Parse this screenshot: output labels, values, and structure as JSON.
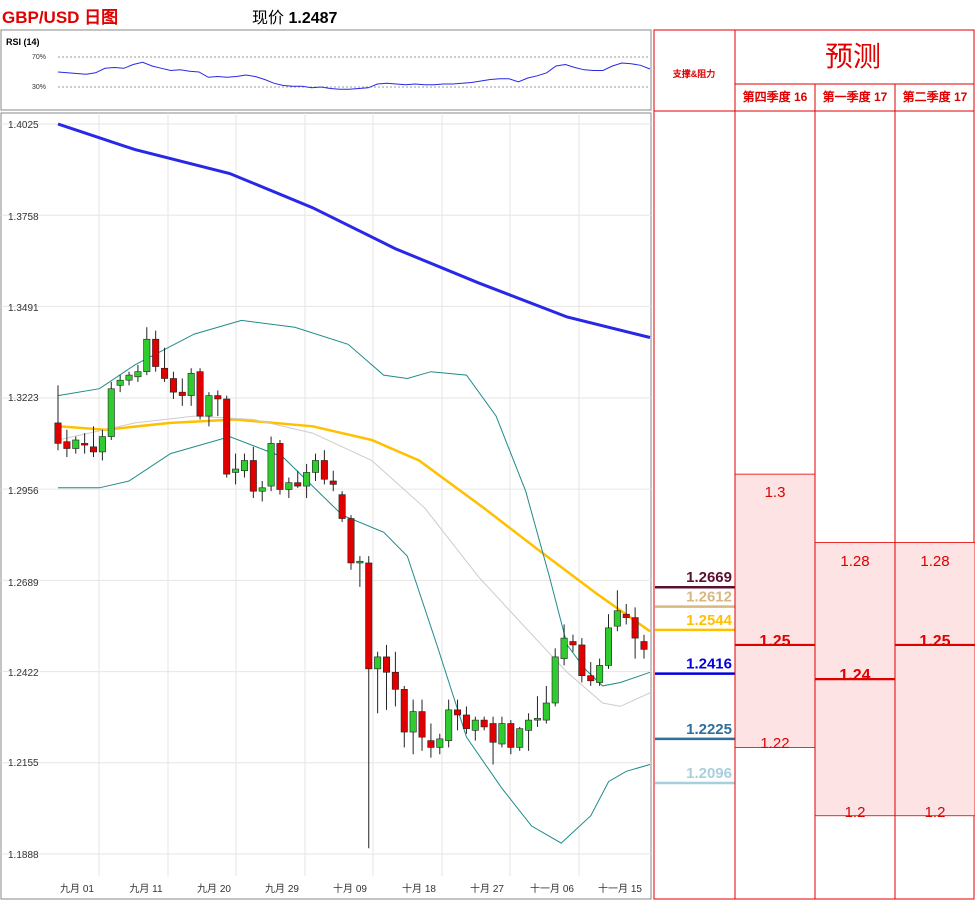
{
  "header": {
    "symbol_title": "GBP/USD 日图",
    "price_label": "现价",
    "price_value": "1.2487"
  },
  "chart_data": {
    "type": "candlestick",
    "y_ticks": [
      "1.4025",
      "1.3758",
      "1.3491",
      "1.3223",
      "1.2956",
      "1.2689",
      "1.2422",
      "1.2155",
      "1.1888"
    ],
    "x_labels": [
      "九月 01",
      "九月 11",
      "九月 20",
      "九月 29",
      "十月 09",
      "十月 18",
      "十月 27",
      "十一月 06",
      "十一月 15"
    ],
    "ylim": [
      1.1888,
      1.4025
    ],
    "candles": [
      [
        1.315,
        1.326,
        1.307,
        1.309
      ],
      [
        1.3095,
        1.313,
        1.305,
        1.3075
      ],
      [
        1.3075,
        1.311,
        1.306,
        1.31
      ],
      [
        1.309,
        1.312,
        1.306,
        1.3085
      ],
      [
        1.308,
        1.314,
        1.305,
        1.3065
      ],
      [
        1.3065,
        1.313,
        1.304,
        1.311
      ],
      [
        1.311,
        1.327,
        1.31,
        1.325
      ],
      [
        1.326,
        1.329,
        1.324,
        1.3275
      ],
      [
        1.3275,
        1.33,
        1.326,
        1.329
      ],
      [
        1.3285,
        1.332,
        1.327,
        1.33
      ],
      [
        1.33,
        1.343,
        1.329,
        1.3395
      ],
      [
        1.3395,
        1.342,
        1.33,
        1.3315
      ],
      [
        1.331,
        1.337,
        1.327,
        1.328
      ],
      [
        1.328,
        1.33,
        1.322,
        1.324
      ],
      [
        1.324,
        1.328,
        1.32,
        1.323
      ],
      [
        1.323,
        1.331,
        1.32,
        1.3295
      ],
      [
        1.33,
        1.331,
        1.316,
        1.317
      ],
      [
        1.317,
        1.324,
        1.314,
        1.323
      ],
      [
        1.323,
        1.3245,
        1.317,
        1.322
      ],
      [
        1.322,
        1.323,
        1.299,
        1.3
      ],
      [
        1.3005,
        1.306,
        1.297,
        1.3015
      ],
      [
        1.301,
        1.306,
        1.299,
        1.304
      ],
      [
        1.304,
        1.308,
        1.293,
        1.295
      ],
      [
        1.295,
        1.298,
        1.292,
        1.296
      ],
      [
        1.2965,
        1.311,
        1.295,
        1.309
      ],
      [
        1.309,
        1.31,
        1.294,
        1.2955
      ],
      [
        1.2955,
        1.299,
        1.293,
        1.2975
      ],
      [
        1.2975,
        1.301,
        1.296,
        1.2965
      ],
      [
        1.2965,
        1.303,
        1.293,
        1.3005
      ],
      [
        1.3005,
        1.306,
        1.298,
        1.304
      ],
      [
        1.304,
        1.307,
        1.297,
        1.2985
      ],
      [
        1.298,
        1.301,
        1.295,
        1.297
      ],
      [
        1.294,
        1.295,
        1.286,
        1.287
      ],
      [
        1.287,
        1.288,
        1.272,
        1.274
      ],
      [
        1.274,
        1.276,
        1.267,
        1.2745
      ],
      [
        1.274,
        1.276,
        1.1905,
        1.243
      ],
      [
        1.243,
        1.248,
        1.23,
        1.2465
      ],
      [
        1.2465,
        1.25,
        1.231,
        1.242
      ],
      [
        1.242,
        1.248,
        1.232,
        1.237
      ],
      [
        1.237,
        1.238,
        1.22,
        1.2245
      ],
      [
        1.2245,
        1.234,
        1.218,
        1.2305
      ],
      [
        1.2305,
        1.234,
        1.219,
        1.223
      ],
      [
        1.222,
        1.227,
        1.217,
        1.22
      ],
      [
        1.22,
        1.224,
        1.218,
        1.2225
      ],
      [
        1.222,
        1.234,
        1.22,
        1.231
      ],
      [
        1.231,
        1.234,
        1.225,
        1.2295
      ],
      [
        1.2295,
        1.232,
        1.224,
        1.2255
      ],
      [
        1.225,
        1.229,
        1.222,
        1.228
      ],
      [
        1.228,
        1.229,
        1.225,
        1.226
      ],
      [
        1.227,
        1.229,
        1.215,
        1.2215
      ],
      [
        1.221,
        1.229,
        1.22,
        1.227
      ],
      [
        1.227,
        1.228,
        1.218,
        1.22
      ],
      [
        1.22,
        1.226,
        1.219,
        1.2255
      ],
      [
        1.225,
        1.23,
        1.219,
        1.228
      ],
      [
        1.228,
        1.235,
        1.226,
        1.2285
      ],
      [
        1.228,
        1.238,
        1.227,
        1.233
      ],
      [
        1.233,
        1.249,
        1.232,
        1.2465
      ],
      [
        1.246,
        1.256,
        1.244,
        1.252
      ],
      [
        1.251,
        1.253,
        1.248,
        1.25
      ],
      [
        1.25,
        1.252,
        1.239,
        1.241
      ],
      [
        1.241,
        1.245,
        1.238,
        1.2395
      ],
      [
        1.239,
        1.246,
        1.238,
        1.244
      ],
      [
        1.244,
        1.259,
        1.243,
        1.255
      ],
      [
        1.2555,
        1.266,
        1.254,
        1.26
      ],
      [
        1.259,
        1.262,
        1.256,
        1.258
      ],
      [
        1.258,
        1.261,
        1.246,
        1.252
      ],
      [
        1.251,
        1.253,
        1.246,
        1.2487
      ]
    ],
    "series": [
      {
        "name": "",
        "color": "#2828e6",
        "values": [
          [
            0,
            1.4025
          ],
          [
            0.13,
            1.395
          ],
          [
            0.29,
            1.388
          ],
          [
            0.43,
            1.378
          ],
          [
            0.57,
            1.366
          ],
          [
            0.71,
            1.356
          ],
          [
            0.86,
            1.346
          ],
          [
            1,
            1.34
          ]
        ]
      },
      {
        "name": "",
        "color": "#ffc000",
        "values": [
          [
            0,
            1.314
          ],
          [
            0.08,
            1.313
          ],
          [
            0.19,
            1.315
          ],
          [
            0.3,
            1.316
          ],
          [
            0.43,
            1.314
          ],
          [
            0.53,
            1.31
          ],
          [
            0.61,
            1.304
          ],
          [
            0.72,
            1.29
          ],
          [
            0.81,
            1.278
          ],
          [
            0.91,
            1.265
          ],
          [
            1,
            1.254
          ]
        ]
      },
      {
        "name": "",
        "color": "#208a8a",
        "values": [
          [
            0,
            1.323
          ],
          [
            0.07,
            1.325
          ],
          [
            0.13,
            1.332
          ],
          [
            0.23,
            1.341
          ],
          [
            0.31,
            1.345
          ],
          [
            0.4,
            1.343
          ],
          [
            0.49,
            1.338
          ],
          [
            0.55,
            1.329
          ],
          [
            0.59,
            1.328
          ],
          [
            0.63,
            1.33
          ],
          [
            0.69,
            1.329
          ],
          [
            0.74,
            1.317
          ],
          [
            0.79,
            1.295
          ],
          [
            0.83,
            1.27
          ],
          [
            0.86,
            1.25
          ],
          [
            0.89,
            1.243
          ],
          [
            0.92,
            1.238
          ],
          [
            0.95,
            1.239
          ],
          [
            1,
            1.242
          ]
        ]
      },
      {
        "name": "",
        "color": "#cccccc",
        "values": [
          [
            0,
            1.31
          ],
          [
            0.13,
            1.315
          ],
          [
            0.23,
            1.317
          ],
          [
            0.33,
            1.316
          ],
          [
            0.43,
            1.312
          ],
          [
            0.53,
            1.304
          ],
          [
            0.62,
            1.29
          ],
          [
            0.71,
            1.27
          ],
          [
            0.79,
            1.255
          ],
          [
            0.86,
            1.242
          ],
          [
            0.92,
            1.233
          ],
          [
            0.95,
            1.232
          ],
          [
            1,
            1.236
          ]
        ]
      },
      {
        "name": "",
        "color": "#208a8a",
        "values": [
          [
            0,
            1.296
          ],
          [
            0.07,
            1.296
          ],
          [
            0.12,
            1.298
          ],
          [
            0.19,
            1.306
          ],
          [
            0.29,
            1.311
          ],
          [
            0.38,
            1.305
          ],
          [
            0.48,
            1.288
          ],
          [
            0.55,
            1.283
          ],
          [
            0.59,
            1.276
          ],
          [
            0.64,
            1.25
          ],
          [
            0.69,
            1.223
          ],
          [
            0.75,
            1.208
          ],
          [
            0.8,
            1.197
          ],
          [
            0.85,
            1.192
          ],
          [
            0.9,
            1.2
          ],
          [
            0.93,
            1.21
          ],
          [
            0.96,
            1.213
          ],
          [
            1,
            1.215
          ]
        ]
      }
    ],
    "rsi": {
      "label": "RSI (14)",
      "levels": [
        "70%",
        "30%"
      ],
      "values": [
        50,
        49,
        48,
        47,
        49,
        55,
        56,
        55,
        60,
        63,
        58,
        55,
        52,
        53,
        51,
        50,
        43,
        44,
        43,
        44,
        46,
        44,
        40,
        35,
        32,
        31,
        31,
        29,
        30,
        28,
        27,
        27,
        28,
        29,
        34,
        35,
        34,
        33,
        34,
        33,
        33,
        34,
        34,
        35,
        36,
        38,
        40,
        41,
        41,
        37,
        42,
        45,
        49,
        58,
        60,
        56,
        53,
        52,
        52,
        58,
        62,
        61,
        59,
        54
      ]
    },
    "levels": [
      {
        "label": "1.2669",
        "value": 1.2669,
        "color": "#5a1030"
      },
      {
        "label": "1.2612",
        "value": 1.2612,
        "color": "#d8b880"
      },
      {
        "label": "1.2544",
        "value": 1.2544,
        "color": "#ffc000"
      },
      {
        "label": "1.2416",
        "value": 1.2416,
        "color": "#0000e0"
      },
      {
        "label": "1.2225",
        "value": 1.2225,
        "color": "#2f6f9c"
      },
      {
        "label": "1.2096",
        "value": 1.2096,
        "color": "#a8d0dc"
      }
    ]
  },
  "forecast": {
    "sr_header": "支撑&阻力",
    "title": "预测",
    "columns": [
      {
        "label": "第四季度 16",
        "top": "1.3",
        "mid": "1.25",
        "low": "1.22",
        "range": [
          1.22,
          1.3
        ]
      },
      {
        "label": "第一季度 17",
        "top": "1.28",
        "mid": "1.24",
        "low": "1.2",
        "range": [
          1.2,
          1.28
        ]
      },
      {
        "label": "第二季度 17",
        "top": "1.28",
        "mid": "1.25",
        "low": "1.2",
        "range": [
          1.2,
          1.28
        ]
      }
    ]
  },
  "colors": {
    "bull": "#2ecc2e",
    "bear": "#e00000",
    "accent": "#e00000",
    "grid": "#e6e6e6"
  }
}
